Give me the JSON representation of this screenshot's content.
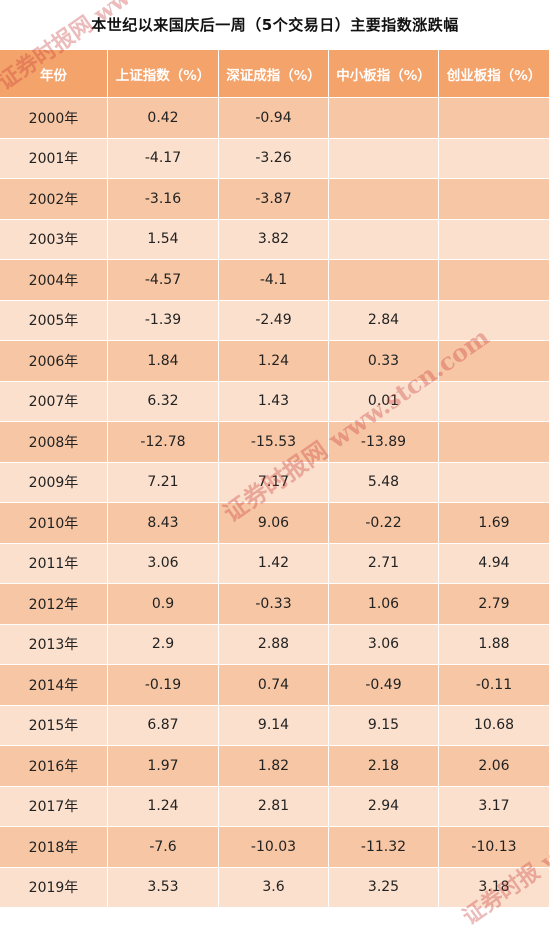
{
  "title": "本世纪以来国庆后一周（5个交易日）主要指数涨跌幅",
  "headers": [
    "年份",
    "上证指数（%）",
    "深证成指（%）",
    "中小板指（%）",
    "创业板指（%）"
  ],
  "rows": [
    [
      "2000年",
      "0.42",
      "-0.94",
      "",
      ""
    ],
    [
      "2001年",
      "-4.17",
      "-3.26",
      "",
      ""
    ],
    [
      "2002年",
      "-3.16",
      "-3.87",
      "",
      ""
    ],
    [
      "2003年",
      "1.54",
      "3.82",
      "",
      ""
    ],
    [
      "2004年",
      "-4.57",
      "-4.1",
      "",
      ""
    ],
    [
      "2005年",
      "-1.39",
      "-2.49",
      "2.84",
      ""
    ],
    [
      "2006年",
      "1.84",
      "1.24",
      "0.33",
      ""
    ],
    [
      "2007年",
      "6.32",
      "1.43",
      "0.01",
      ""
    ],
    [
      "2008年",
      "-12.78",
      "-15.53",
      "-13.89",
      ""
    ],
    [
      "2009年",
      "7.21",
      "7.17",
      "5.48",
      ""
    ],
    [
      "2010年",
      "8.43",
      "9.06",
      "-0.22",
      "1.69"
    ],
    [
      "2011年",
      "3.06",
      "1.42",
      "2.71",
      "4.94"
    ],
    [
      "2012年",
      "0.9",
      "-0.33",
      "1.06",
      "2.79"
    ],
    [
      "2013年",
      "2.9",
      "2.88",
      "3.06",
      "1.88"
    ],
    [
      "2014年",
      "-0.19",
      "0.74",
      "-0.49",
      "-0.11"
    ],
    [
      "2015年",
      "6.87",
      "9.14",
      "9.15",
      "10.68"
    ],
    [
      "2016年",
      "1.97",
      "1.82",
      "2.18",
      "2.06"
    ],
    [
      "2017年",
      "1.24",
      "2.81",
      "2.94",
      "3.17"
    ],
    [
      "2018年",
      "-7.6",
      "-10.03",
      "-11.32",
      "-10.13"
    ],
    [
      "2019年",
      "3.53",
      "3.6",
      "3.25",
      "3.18"
    ]
  ],
  "watermarks": [
    "证券时报网 www.stcn.com",
    "证券时报网 www.stcn.com",
    "证券时报 www.stcn"
  ],
  "colors": {
    "header_bg": "#f4a36a",
    "row_dark": "#f7c7a5",
    "row_light": "#fbe0cd"
  }
}
